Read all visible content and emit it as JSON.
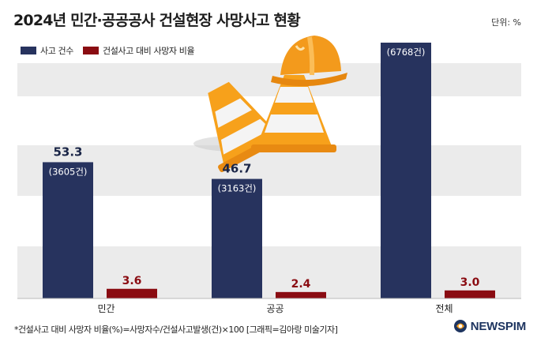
{
  "header": {
    "title": "2024년 민간·공공공사 건설현장 사망사고 현황",
    "unit": "단위: %"
  },
  "legend": [
    {
      "label": "사고 건수",
      "color": "#27335e"
    },
    {
      "label": "건설사고 대비 사망자 비율",
      "color": "#8a0c12"
    }
  ],
  "chart_data": {
    "type": "bar",
    "categories": [
      "민간",
      "공공",
      "전체"
    ],
    "series": [
      {
        "name": "사고 건수",
        "values": [
          3605,
          3163,
          6768
        ],
        "labels": [
          "(3605건)",
          "(3163건)",
          "(6768건)"
        ],
        "color": "#27335e"
      },
      {
        "name": "건설사고 대비 사망자 비율",
        "values": [
          3.6,
          2.4,
          3.0
        ],
        "labels": [
          "3.6",
          "2.4",
          "3.0"
        ],
        "color": "#8a0c12"
      }
    ],
    "top_labels": [
      "53.3",
      "46.7",
      ""
    ],
    "ylim": [
      0,
      6768
    ],
    "grid": "horizontal bands"
  },
  "footer": {
    "note": "*건설사고 대비 사망자 비율(%)=사망자수/건설사고발생(건)×100 [그래픽=김아랑 미술기자]",
    "brand": "NEWSPIM"
  },
  "colors": {
    "band": "#ebebeb",
    "navy": "#27335e",
    "red": "#8a0c12",
    "cone_orange": "#f7a11b",
    "helmet": "#f39a1c"
  },
  "icons": [
    "traffic-cone-icon",
    "hard-hat-icon",
    "newspim-logo-icon"
  ]
}
